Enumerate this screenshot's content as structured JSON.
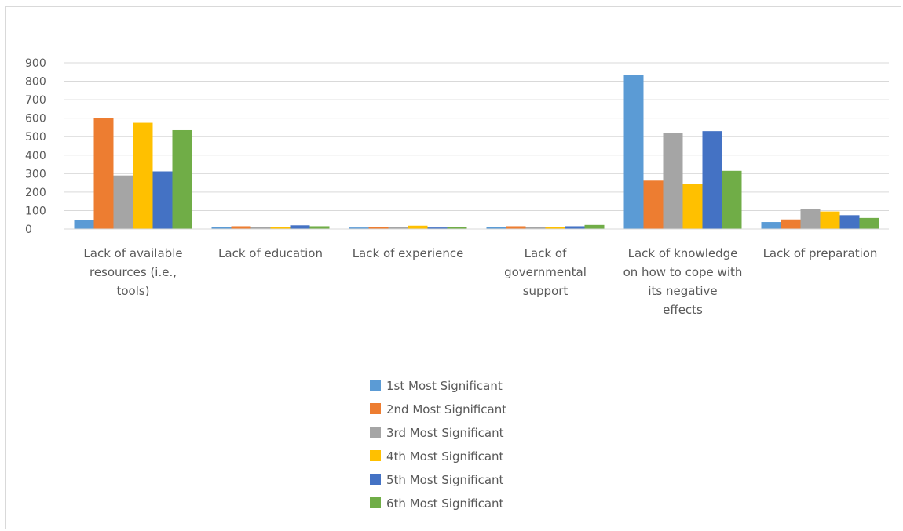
{
  "chart_data": {
    "type": "bar",
    "title": "",
    "xlabel": "",
    "ylabel": "",
    "ylim": [
      0,
      900
    ],
    "yticks": [
      0,
      100,
      200,
      300,
      400,
      500,
      600,
      700,
      800,
      900
    ],
    "grid": true,
    "legend_position": "bottom",
    "categories": [
      "Lack of available resources (i.e., tools)",
      "Lack of education",
      "Lack of experience",
      "Lack of governmental support",
      "Lack of knowledge on how to cope with its negative effects",
      "Lack of preparation"
    ],
    "series": [
      {
        "name": "1st Most Significant",
        "color": "#5b9bd5",
        "values": [
          50,
          12,
          8,
          12,
          835,
          38
        ]
      },
      {
        "name": "2nd Most Significant",
        "color": "#ed7d31",
        "values": [
          600,
          15,
          10,
          15,
          262,
          52
        ]
      },
      {
        "name": "3rd Most Significant",
        "color": "#a5a5a5",
        "values": [
          290,
          10,
          12,
          12,
          522,
          110
        ]
      },
      {
        "name": "4th Most Significant",
        "color": "#ffc000",
        "values": [
          575,
          12,
          18,
          12,
          242,
          95
        ]
      },
      {
        "name": "5th Most Significant",
        "color": "#4472c4",
        "values": [
          312,
          20,
          8,
          15,
          530,
          75
        ]
      },
      {
        "name": "6th Most Significant",
        "color": "#70ad47",
        "values": [
          535,
          15,
          10,
          22,
          315,
          60
        ]
      }
    ]
  }
}
